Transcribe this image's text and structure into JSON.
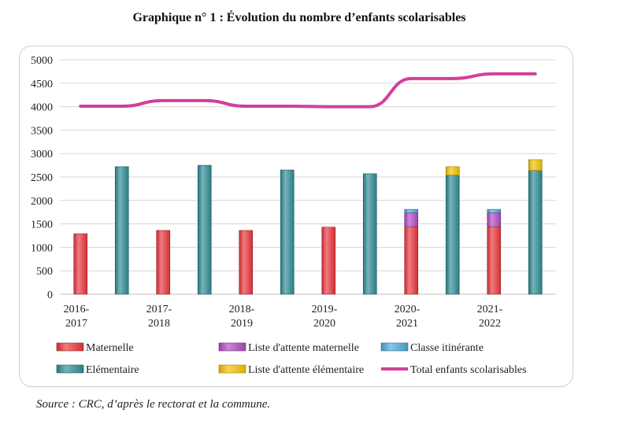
{
  "header": {
    "title": "Graphique n° 1 :  Évolution du nombre d’enfants scolarisables"
  },
  "footer": {
    "source": "Source : CRC, d’après le rectorat et la commune."
  },
  "chart_data": {
    "type": "bar",
    "categories": [
      "2016-2017",
      "2017-2018",
      "2018-2019",
      "2019-2020",
      "2020-2021",
      "2021-2022"
    ],
    "category_lines": [
      [
        "2016-",
        "2017"
      ],
      [
        "2017-",
        "2018"
      ],
      [
        "2018-",
        "2019"
      ],
      [
        "2019-",
        "2020"
      ],
      [
        "2020-",
        "2021"
      ],
      [
        "2021-",
        "2022"
      ]
    ],
    "ylim": [
      0,
      5000
    ],
    "yticks": [
      0,
      500,
      1000,
      1500,
      2000,
      2500,
      3000,
      3500,
      4000,
      4500,
      5000
    ],
    "grid": true,
    "legend_position": "bottom",
    "series": [
      {
        "name": "Maternelle",
        "color": "#e8343a",
        "values": [
          1290,
          1360,
          1360,
          1430,
          1440,
          1440
        ]
      },
      {
        "name": "Liste d'attente maternelle",
        "color": "#b048c0",
        "values": [
          0,
          0,
          0,
          0,
          300,
          300
        ]
      },
      {
        "name": "Classe itinérante",
        "color": "#4aa8dc",
        "values": [
          0,
          0,
          0,
          0,
          70,
          70
        ]
      },
      {
        "name": "Elémentaire",
        "color": "#2e8a94",
        "values": [
          2720,
          2750,
          2650,
          2570,
          2540,
          2640
        ]
      },
      {
        "name": "Liste d'attente élémentaire",
        "color": "#f2c200",
        "values": [
          0,
          0,
          0,
          0,
          180,
          230
        ]
      },
      {
        "name": "Total enfants scolarisables",
        "color": "#d0409a",
        "type": "line",
        "values": [
          4010,
          4130,
          4010,
          4000,
          4600,
          4700
        ]
      }
    ]
  }
}
